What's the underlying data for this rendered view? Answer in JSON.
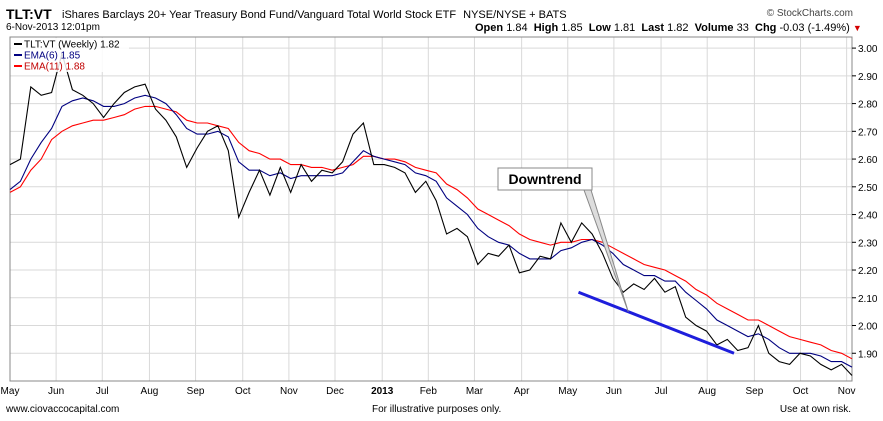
{
  "header": {
    "symbol": "TLT:VT",
    "name": "iShares Barclays 20+ Year Treasury Bond Fund/Vanguard Total World Stock ETF",
    "exchange": "NYSE/NYSE + BATS",
    "brand": "© StockCharts.com",
    "date": "6-Nov-2013 12:01pm",
    "open_label": "Open",
    "open": "1.84",
    "high_label": "High",
    "high": "1.85",
    "low_label": "Low",
    "low": "1.81",
    "last_label": "Last",
    "last": "1.82",
    "volume_label": "Volume",
    "volume": "33",
    "chg_label": "Chg",
    "chg": "-0.03 (-1.49%)"
  },
  "footer": {
    "left": "www.ciovaccocapital.com",
    "middle": "For illustrative purposes only.",
    "right": "Use at own risk."
  },
  "annotation": {
    "label": "Downtrend"
  },
  "chart_data": {
    "type": "line",
    "title": "",
    "xlabel": "",
    "ylabel": "",
    "ylim": [
      1.8,
      3.04
    ],
    "y_ticks": [
      "1.90",
      "2.00",
      "2.10",
      "2.20",
      "2.30",
      "2.40",
      "2.50",
      "2.60",
      "2.70",
      "2.80",
      "2.90",
      "3.00"
    ],
    "y_tick_values": [
      1.9,
      2.0,
      2.1,
      2.2,
      2.3,
      2.4,
      2.5,
      2.6,
      2.7,
      2.8,
      2.9,
      3.0
    ],
    "x_tick_labels": [
      "May",
      "Jun",
      "Jul",
      "Aug",
      "Sep",
      "Oct",
      "Nov",
      "Dec",
      "2013",
      "Feb",
      "Mar",
      "Apr",
      "May",
      "Jun",
      "Jul",
      "Aug",
      "Sep",
      "Oct",
      "Nov"
    ],
    "x_tick_weeks": [
      0,
      4.3,
      8.6,
      13,
      17.3,
      21.7,
      26,
      30.3,
      34.7,
      39,
      43.3,
      47.7,
      52,
      56.3,
      60.7,
      65,
      69.4,
      73.7,
      78
    ],
    "x_range_weeks": [
      0,
      78.5
    ],
    "grid": true,
    "legend_position": "top-left",
    "colors": {
      "price": "#000000",
      "ema6": "#000080",
      "ema11": "#ff0000",
      "trend": "#1e1edc",
      "grid": "#d9d9d9"
    },
    "series": [
      {
        "name": "TLT:VT (Weekly) 1.82",
        "color": "#000000",
        "values": [
          2.58,
          2.6,
          2.86,
          2.83,
          2.84,
          2.98,
          2.85,
          2.83,
          2.8,
          2.75,
          2.8,
          2.84,
          2.86,
          2.87,
          2.78,
          2.74,
          2.68,
          2.57,
          2.64,
          2.7,
          2.72,
          2.63,
          2.39,
          2.48,
          2.56,
          2.47,
          2.57,
          2.48,
          2.58,
          2.52,
          2.56,
          2.55,
          2.59,
          2.69,
          2.73,
          2.58,
          2.58,
          2.57,
          2.55,
          2.48,
          2.52,
          2.45,
          2.33,
          2.35,
          2.32,
          2.22,
          2.26,
          2.25,
          2.29,
          2.19,
          2.2,
          2.25,
          2.24,
          2.37,
          2.3,
          2.37,
          2.33,
          2.26,
          2.17,
          2.12,
          2.15,
          2.13,
          2.17,
          2.12,
          2.14,
          2.03,
          2.0,
          1.98,
          1.93,
          1.95,
          1.91,
          1.92,
          2.0,
          1.9,
          1.87,
          1.86,
          1.9,
          1.89,
          1.86,
          1.84,
          1.86,
          1.82
        ]
      },
      {
        "name": "EMA(6) 1.85",
        "color": "#000080",
        "values": [
          2.49,
          2.52,
          2.6,
          2.66,
          2.71,
          2.79,
          2.81,
          2.82,
          2.81,
          2.79,
          2.79,
          2.8,
          2.82,
          2.83,
          2.82,
          2.8,
          2.76,
          2.71,
          2.69,
          2.69,
          2.7,
          2.68,
          2.59,
          2.56,
          2.56,
          2.54,
          2.55,
          2.53,
          2.54,
          2.54,
          2.54,
          2.54,
          2.55,
          2.59,
          2.63,
          2.61,
          2.6,
          2.59,
          2.58,
          2.55,
          2.54,
          2.52,
          2.46,
          2.43,
          2.4,
          2.35,
          2.32,
          2.3,
          2.29,
          2.26,
          2.24,
          2.24,
          2.24,
          2.27,
          2.28,
          2.3,
          2.31,
          2.29,
          2.26,
          2.22,
          2.2,
          2.18,
          2.18,
          2.16,
          2.16,
          2.12,
          2.09,
          2.06,
          2.02,
          2.0,
          1.98,
          1.96,
          1.97,
          1.95,
          1.92,
          1.9,
          1.9,
          1.9,
          1.89,
          1.87,
          1.87,
          1.85
        ]
      },
      {
        "name": "EMA(11) 1.88",
        "color": "#ff0000",
        "values": [
          2.48,
          2.5,
          2.56,
          2.6,
          2.67,
          2.7,
          2.72,
          2.73,
          2.74,
          2.74,
          2.75,
          2.76,
          2.78,
          2.79,
          2.79,
          2.78,
          2.77,
          2.74,
          2.73,
          2.73,
          2.72,
          2.71,
          2.66,
          2.63,
          2.62,
          2.6,
          2.6,
          2.58,
          2.58,
          2.57,
          2.57,
          2.56,
          2.57,
          2.58,
          2.61,
          2.61,
          2.6,
          2.6,
          2.59,
          2.57,
          2.56,
          2.55,
          2.51,
          2.49,
          2.46,
          2.42,
          2.4,
          2.38,
          2.36,
          2.33,
          2.31,
          2.3,
          2.29,
          2.3,
          2.3,
          2.31,
          2.31,
          2.3,
          2.28,
          2.26,
          2.24,
          2.22,
          2.21,
          2.2,
          2.18,
          2.16,
          2.13,
          2.11,
          2.08,
          2.06,
          2.04,
          2.02,
          2.02,
          2.0,
          1.98,
          1.96,
          1.95,
          1.94,
          1.93,
          1.91,
          1.9,
          1.88
        ]
      }
    ],
    "trendline": {
      "from_week": 53,
      "from_value": 2.12,
      "to_week": 67.5,
      "to_value": 1.9
    }
  }
}
